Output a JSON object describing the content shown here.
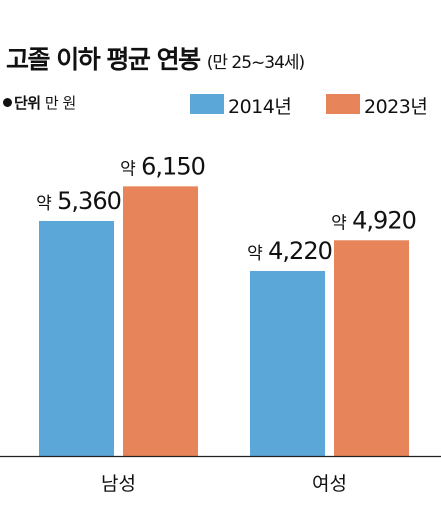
{
  "header": {
    "title": "고졸 이하 평균 연봉",
    "subtitle": "(만 25~34세)",
    "unit_key": "단위",
    "unit_value": "만 원"
  },
  "chart_data": {
    "type": "bar",
    "title": "고졸 이하 평균 연봉",
    "subtitle": "(만 25~34세)",
    "unit": "만 원",
    "categories": [
      "남성",
      "여성"
    ],
    "series": [
      {
        "name": "2014년",
        "color": "#5aa7d8",
        "values": [
          5360,
          4220
        ],
        "labels": [
          "5,360",
          "4,220"
        ]
      },
      {
        "name": "2023년",
        "color": "#e8845a",
        "values": [
          6150,
          4920
        ],
        "labels": [
          "6,150",
          "4,920"
        ]
      }
    ],
    "label_prefix": "약",
    "ylim": [
      0,
      6500
    ],
    "grid": false,
    "legend_position": "top-right"
  }
}
